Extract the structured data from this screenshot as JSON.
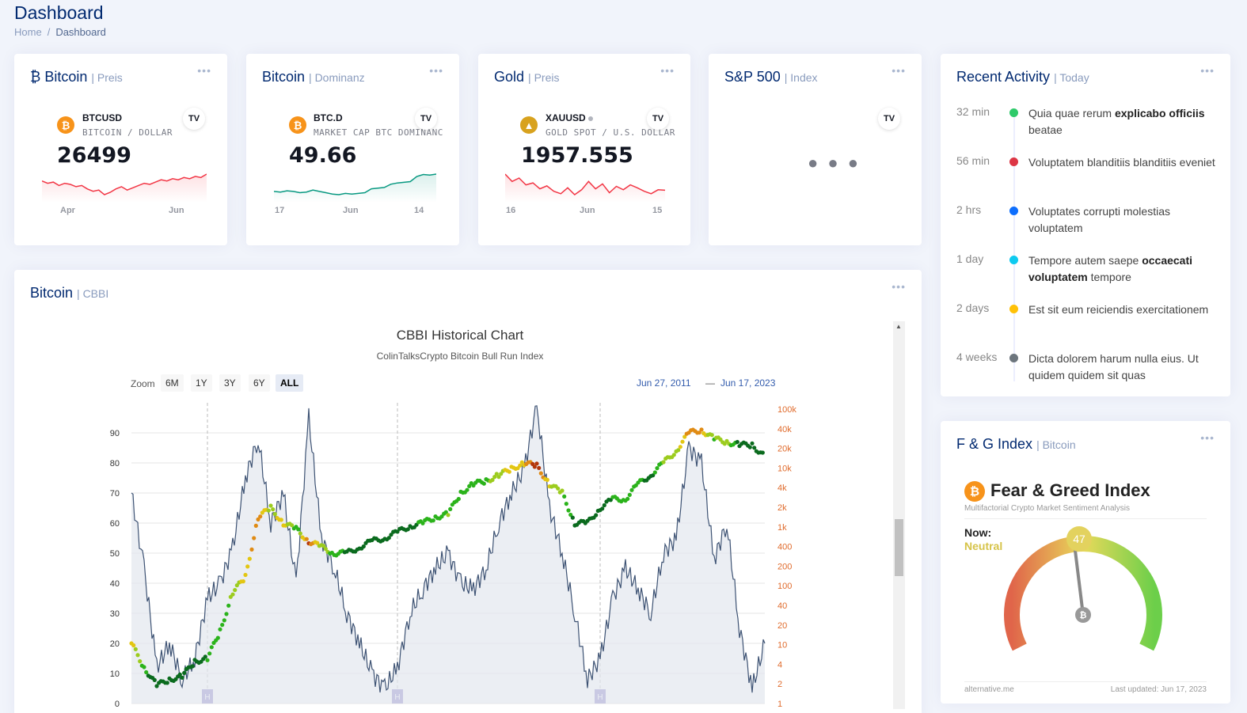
{
  "header": {
    "title": "Dashboard",
    "breadcrumb": [
      "Home",
      "/",
      "Dashboard"
    ]
  },
  "cards": {
    "bitcoin_price": {
      "title": "₿ Bitcoin",
      "subtitle": "| Preis",
      "symbol": "BTCUSD",
      "description": "BITCOIN / DOLLAR",
      "price": "26499",
      "x_labels": [
        "Apr",
        "Jun"
      ],
      "icon": "bitcoin-icon",
      "line_color": "#f23645",
      "spark": [
        62,
        60,
        61,
        58,
        60,
        59,
        57,
        58,
        55,
        53,
        54,
        50,
        52,
        55,
        57,
        54,
        56,
        58,
        60,
        59,
        61,
        63,
        62,
        64,
        63,
        65,
        64,
        66,
        65,
        68
      ]
    },
    "bitcoin_dominance": {
      "title": "Bitcoin",
      "subtitle": "| Dominanz",
      "symbol": "BTC.D",
      "description": "MARKET CAP BTC DOMINANCE",
      "price": "49.66",
      "x_labels": [
        "17",
        "Jun",
        "14"
      ],
      "icon": "bitcoin-icon",
      "line_color": "#089981",
      "spark": [
        47.0,
        46.9,
        47.1,
        47.0,
        46.8,
        46.9,
        47.2,
        47.0,
        46.8,
        46.6,
        46.5,
        46.7,
        46.6,
        46.7,
        46.8,
        47.4,
        47.5,
        47.6,
        48.1,
        48.3,
        48.4,
        48.5,
        49.3,
        49.6,
        49.5,
        49.66
      ]
    },
    "gold_price": {
      "title": "Gold",
      "subtitle": "| Preis",
      "symbol": "XAUUSD",
      "description": "GOLD SPOT / U.S. DOLLAR",
      "price": "1957.555",
      "x_labels": [
        "16",
        "Jun",
        "15"
      ],
      "icon": "gold-icon",
      "line_color": "#f23645",
      "spark": [
        1990,
        1975,
        1982,
        1968,
        1972,
        1960,
        1966,
        1955,
        1950,
        1962,
        1948,
        1958,
        1975,
        1960,
        1970,
        1952,
        1965,
        1958,
        1968,
        1962,
        1955,
        1950,
        1958,
        1957
      ]
    },
    "sp500": {
      "title": "S&P 500",
      "subtitle": "| Index",
      "loading": "● ● ●"
    }
  },
  "activity": {
    "title": "Recent Activity",
    "subtitle": "| Today",
    "items": [
      {
        "time": "32 min",
        "color": "#2eca6a",
        "pre": "Quia quae rerum ",
        "bold": "explicabo officiis",
        "post": " beatae"
      },
      {
        "time": "56 min",
        "color": "#dc3545",
        "pre": "Voluptatem blanditiis blanditiis eveniet",
        "bold": "",
        "post": ""
      },
      {
        "time": "2 hrs",
        "color": "#0d6efd",
        "pre": "Voluptates corrupti molestias voluptatem",
        "bold": "",
        "post": ""
      },
      {
        "time": "1 day",
        "color": "#0dcaf0",
        "pre": "Tempore autem saepe ",
        "bold": "occaecati voluptatem",
        "post": " tempore"
      },
      {
        "time": "2 days",
        "color": "#ffc107",
        "pre": "Est sit eum reiciendis exercitationem",
        "bold": "",
        "post": ""
      },
      {
        "time": "4 weeks",
        "color": "#6c757d",
        "pre": "Dicta dolorem harum nulla eius. Ut quidem quidem sit quas",
        "bold": "",
        "post": ""
      }
    ]
  },
  "cbbi_card": {
    "title": "Bitcoin",
    "subtitle": "| CBBI",
    "chart_title": "CBBI Historical Chart",
    "chart_subtitle": "ColinTalksCrypto Bitcoin Bull Run Index",
    "zoom_label": "Zoom",
    "zoom_buttons": [
      "6M",
      "1Y",
      "3Y",
      "6Y",
      "ALL"
    ],
    "range_from": "Jun 27, 2011",
    "range_dash": "—",
    "range_to": "Jun 17, 2023"
  },
  "chart_data": {
    "type": "line",
    "title": "CBBI Historical Chart",
    "subtitle": "ColinTalksCrypto Bitcoin Bull Run Index",
    "y_left_ticks": [
      "0",
      "10",
      "20",
      "30",
      "40",
      "50",
      "60",
      "70",
      "80",
      "90"
    ],
    "y_right_ticks": [
      "1",
      "2",
      "4",
      "10",
      "20",
      "40",
      "100",
      "200",
      "400",
      "1k",
      "2k",
      "4k",
      "10k",
      "20k",
      "40k",
      "100k"
    ],
    "ylim_left": [
      0,
      100
    ],
    "halving_markers": [
      "H",
      "H",
      "H"
    ],
    "series": [
      {
        "type": "area",
        "color": "#3d5273",
        "t": [
          0,
          0.02,
          0.04,
          0.06,
          0.08,
          0.1,
          0.12,
          0.14,
          0.16,
          0.18,
          0.2,
          0.22,
          0.24,
          0.26,
          0.28,
          0.3,
          0.32,
          0.34,
          0.36,
          0.38,
          0.4,
          0.42,
          0.44,
          0.46,
          0.48,
          0.5,
          0.52,
          0.54,
          0.56,
          0.58,
          0.6,
          0.62,
          0.64,
          0.66,
          0.68,
          0.7,
          0.72,
          0.74,
          0.76,
          0.78,
          0.8,
          0.82,
          0.84,
          0.86,
          0.88,
          0.9,
          0.92,
          0.94,
          0.96,
          0.98,
          1.0
        ],
        "values": [
          70,
          45,
          12,
          20,
          8,
          15,
          35,
          40,
          52,
          75,
          88,
          60,
          70,
          40,
          95,
          55,
          45,
          30,
          20,
          10,
          5,
          12,
          30,
          38,
          45,
          50,
          40,
          38,
          45,
          60,
          70,
          78,
          99,
          65,
          50,
          30,
          8,
          15,
          35,
          45,
          38,
          30,
          50,
          55,
          85,
          80,
          48,
          60,
          25,
          5,
          20
        ]
      },
      {
        "type": "price",
        "t": [
          0,
          0.02,
          0.04,
          0.06,
          0.08,
          0.1,
          0.12,
          0.14,
          0.16,
          0.18,
          0.2,
          0.22,
          0.24,
          0.26,
          0.28,
          0.3,
          0.32,
          0.34,
          0.36,
          0.38,
          0.4,
          0.42,
          0.44,
          0.46,
          0.48,
          0.5,
          0.52,
          0.54,
          0.56,
          0.58,
          0.6,
          0.62,
          0.64,
          0.66,
          0.68,
          0.7,
          0.72,
          0.74,
          0.76,
          0.78,
          0.8,
          0.82,
          0.84,
          0.86,
          0.88,
          0.9,
          0.92,
          0.94,
          0.96,
          0.98,
          1.0
        ],
        "values": [
          20,
          12,
          6,
          8,
          9,
          14,
          15,
          24,
          37,
          42,
          62,
          65,
          60,
          58,
          54,
          52,
          50,
          50,
          52,
          54,
          55,
          57,
          59,
          60,
          62,
          63,
          70,
          73,
          74,
          76,
          78,
          80,
          79,
          73,
          70,
          60,
          60,
          65,
          68,
          68,
          73,
          76,
          80,
          84,
          90,
          91,
          88,
          87,
          86,
          86,
          82
        ]
      }
    ]
  },
  "fg_card": {
    "title": "F & G Index",
    "subtitle": "| Bitcoin",
    "widget_title": "Fear & Greed Index",
    "widget_sub": "Multifactorial Crypto Market Sentiment Analysis",
    "now_label": "Now:",
    "classification": "Neutral",
    "value": 47,
    "value_label": "47",
    "footer_left": "alternative.me",
    "footer_right": "Last updated: Jun 17, 2023"
  }
}
